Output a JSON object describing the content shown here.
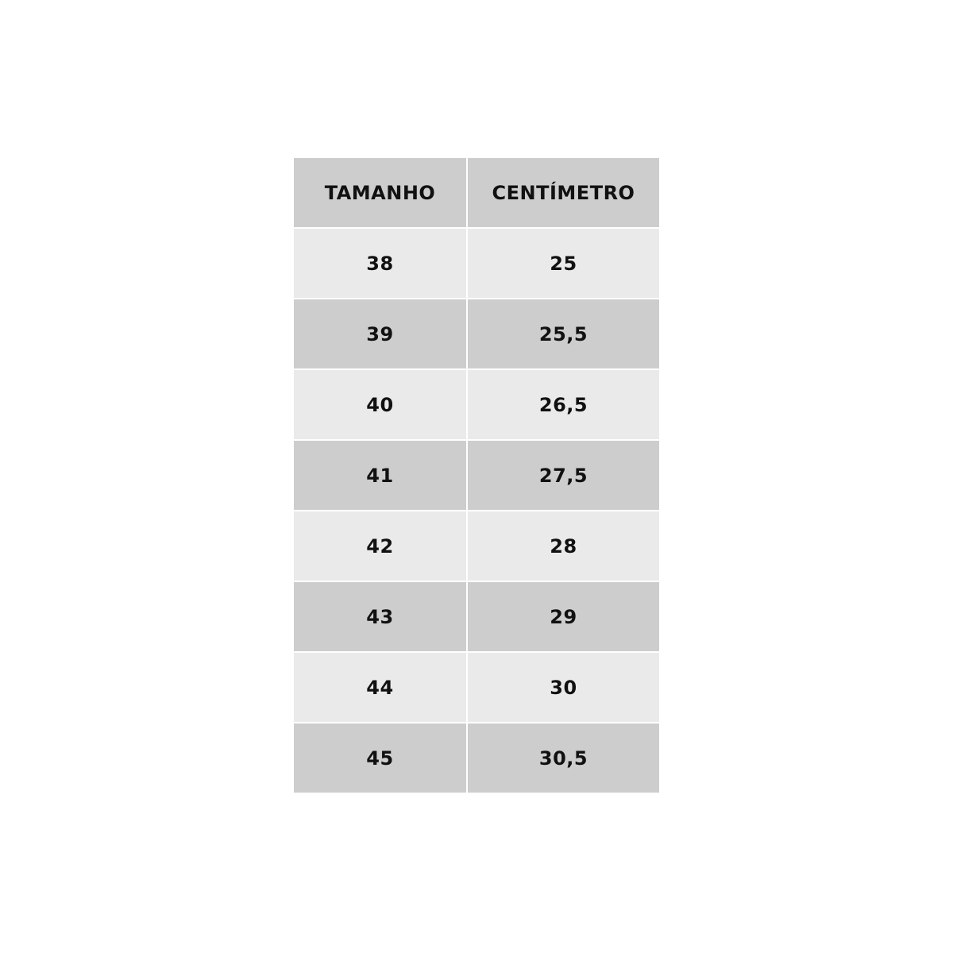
{
  "table": {
    "header": [
      "TAMANHO",
      "CENTÍMETRO"
    ],
    "rows": [
      [
        "38",
        "25"
      ],
      [
        "39",
        "25,5"
      ],
      [
        "40",
        "26,5"
      ],
      [
        "41",
        "27,5"
      ],
      [
        "42",
        "28"
      ],
      [
        "43",
        "29"
      ],
      [
        "44",
        "30"
      ],
      [
        "45",
        "30,5"
      ]
    ]
  }
}
